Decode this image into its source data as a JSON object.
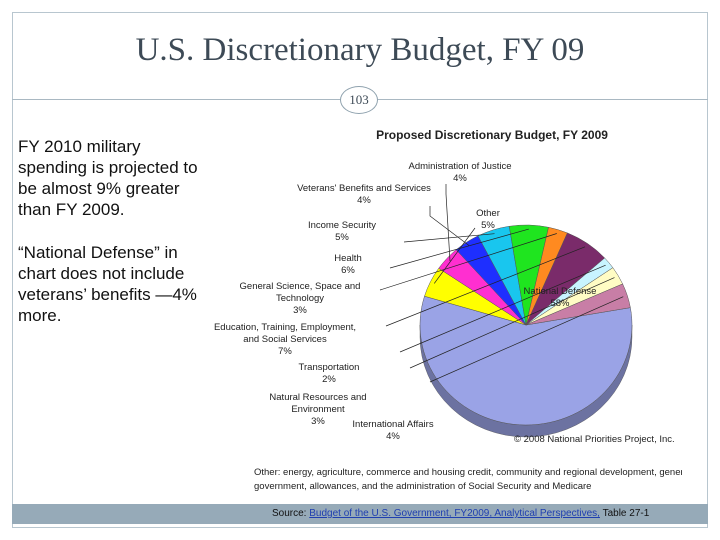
{
  "slide": {
    "title": "U.S. Discretionary Budget, FY 09",
    "page_number": "103"
  },
  "notes": {
    "para1": "FY 2010 military spending is projected to be almost 9% greater than FY 2009.",
    "para2": "“National Defense” in chart does not include veterans’ benefits —4% more."
  },
  "source": {
    "prefix": "Source: ",
    "link_text": "Budget of the U.S. Government, FY2009, Analytical Perspectives,",
    "suffix": " Table 27-1"
  },
  "chart_data": {
    "type": "pie",
    "title": "Proposed Discretionary Budget, FY 2009",
    "slices": [
      {
        "label": "National Defense",
        "value": 58,
        "pct": "58%",
        "color": "#9aa3e6"
      },
      {
        "label": "Other",
        "value": 5,
        "pct": "5%",
        "color": "#ffff00"
      },
      {
        "label": "Administration of Justice",
        "value": 4,
        "pct": "4%",
        "color": "#ff2fd0"
      },
      {
        "label": "Veterans' Benefits and Services",
        "value": 4,
        "pct": "4%",
        "color": "#1e2fff"
      },
      {
        "label": "Income Security",
        "value": 5,
        "pct": "5%",
        "color": "#19c6ee"
      },
      {
        "label": "Health",
        "value": 6,
        "pct": "6%",
        "color": "#1fe51f"
      },
      {
        "label": "General Science, Space and Technology",
        "value": 3,
        "pct": "3%",
        "color": "#ff8a20"
      },
      {
        "label": "Education, Training, Employment, and Social Services",
        "value": 7,
        "pct": "7%",
        "color": "#7a2b6a"
      },
      {
        "label": "Transportation",
        "value": 2,
        "pct": "2%",
        "color": "#c8f4ff"
      },
      {
        "label": "Natural Resources and Environment",
        "value": 3,
        "pct": "3%",
        "color": "#fffcc4"
      },
      {
        "label": "International Affairs",
        "value": 4,
        "pct": "4%",
        "color": "#c87ea6"
      }
    ],
    "copyright": "© 2008 National Priorities Project, Inc.",
    "footnote_line1": "Other: energy, agriculture, commerce and housing credit, community and regional development, general",
    "footnote_line2": "government, allowances, and the administration of Social Security and Medicare"
  }
}
